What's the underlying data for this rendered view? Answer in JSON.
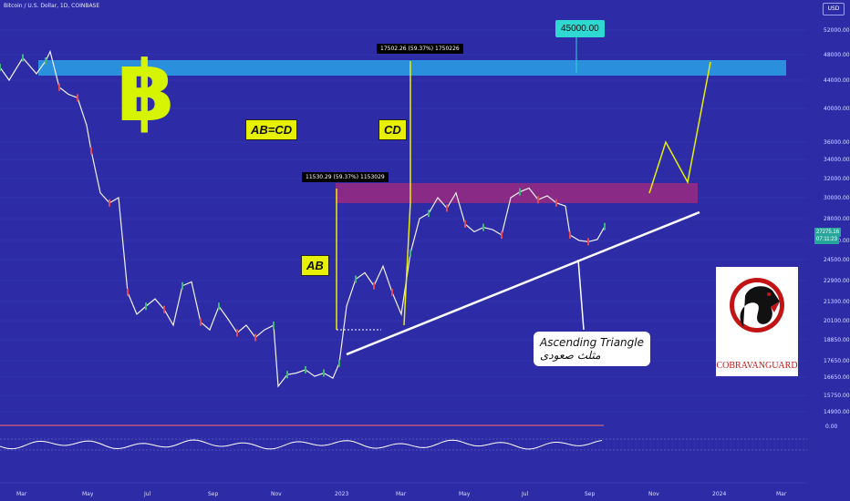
{
  "header": {
    "title": "Bitcoin / U.S. Dollar, 1D, COINBASE",
    "currency": "USD"
  },
  "chart_data": {
    "type": "line",
    "series": [
      {
        "name": "Bitcoin / U.S. Dollar",
        "points": [
          [
            0,
            46000
          ],
          [
            10,
            44000
          ],
          [
            25,
            47500
          ],
          [
            40,
            45000
          ],
          [
            50,
            47000
          ],
          [
            55,
            48500
          ],
          [
            65,
            43000
          ],
          [
            75,
            42000
          ],
          [
            85,
            41500
          ],
          [
            95,
            38000
          ],
          [
            100,
            35000
          ],
          [
            110,
            30500
          ],
          [
            120,
            29500
          ],
          [
            130,
            30000
          ],
          [
            140,
            22000
          ],
          [
            150,
            20500
          ],
          [
            160,
            21000
          ],
          [
            170,
            21500
          ],
          [
            180,
            20800
          ],
          [
            190,
            19800
          ],
          [
            200,
            22500
          ],
          [
            210,
            22800
          ],
          [
            220,
            20000
          ],
          [
            230,
            19500
          ],
          [
            240,
            21000
          ],
          [
            250,
            20200
          ],
          [
            260,
            19300
          ],
          [
            270,
            19800
          ],
          [
            280,
            19000
          ],
          [
            290,
            19500
          ],
          [
            300,
            19800
          ],
          [
            305,
            16200
          ],
          [
            315,
            16800
          ],
          [
            325,
            16900
          ],
          [
            335,
            17100
          ],
          [
            345,
            16700
          ],
          [
            355,
            16900
          ],
          [
            365,
            16600
          ],
          [
            372,
            17500
          ],
          [
            380,
            21000
          ],
          [
            390,
            23000
          ],
          [
            400,
            23500
          ],
          [
            410,
            22500
          ],
          [
            420,
            24000
          ],
          [
            430,
            22000
          ],
          [
            440,
            20500
          ],
          [
            450,
            25000
          ],
          [
            460,
            28000
          ],
          [
            470,
            28500
          ],
          [
            480,
            30000
          ],
          [
            490,
            29000
          ],
          [
            500,
            30500
          ],
          [
            510,
            27500
          ],
          [
            520,
            26800
          ],
          [
            530,
            27200
          ],
          [
            540,
            27000
          ],
          [
            550,
            26500
          ],
          [
            560,
            30000
          ],
          [
            570,
            30600
          ],
          [
            580,
            31000
          ],
          [
            590,
            29800
          ],
          [
            600,
            30200
          ],
          [
            610,
            29500
          ],
          [
            620,
            29200
          ],
          [
            625,
            26500
          ],
          [
            635,
            26000
          ],
          [
            645,
            25900
          ],
          [
            655,
            26100
          ],
          [
            663,
            27275
          ]
        ]
      },
      {
        "name": "RSI",
        "values": []
      }
    ],
    "y_ticks": [
      "52000.00",
      "48000.00",
      "44000.00",
      "40000.00",
      "36000.00",
      "34000.00",
      "32000.00",
      "30000.00",
      "28000.00",
      "26000.00",
      "24500.00",
      "22900.00",
      "21300.00",
      "20100.00",
      "18850.00",
      "17650.00",
      "16650.00",
      "15750.00",
      "14900.00"
    ],
    "x_ticks": [
      "Mar",
      "May",
      "Jul",
      "Sep",
      "Nov",
      "2023",
      "Mar",
      "May",
      "Jul",
      "Sep",
      "Nov",
      "2024",
      "Mar"
    ],
    "rsi_ticks": [
      "0.00"
    ],
    "current_price": "27275.16",
    "countdown": "07:11:23",
    "zones": [
      {
        "name": "target-zone",
        "color": "#2aa1e6"
      },
      {
        "name": "resistance-zone",
        "color": "#b02a7a"
      }
    ],
    "annotations": {
      "target_label": "45000.00",
      "cd_callout": "17502.26 (59.37%) 1750226",
      "ab_callout": "11530.29 (59.37%) 1153029",
      "ab_cd": "AB=CD",
      "cd": "CD",
      "ab": "AB",
      "pattern_en": "Ascending Triangle",
      "pattern_fa": "مثلث صعودی"
    }
  },
  "logo": {
    "text": "COBRAVANGUARD"
  },
  "colors": {
    "background": "#2d2ca6",
    "accent": "#e6f000",
    "price_badge": "#26a69a"
  }
}
